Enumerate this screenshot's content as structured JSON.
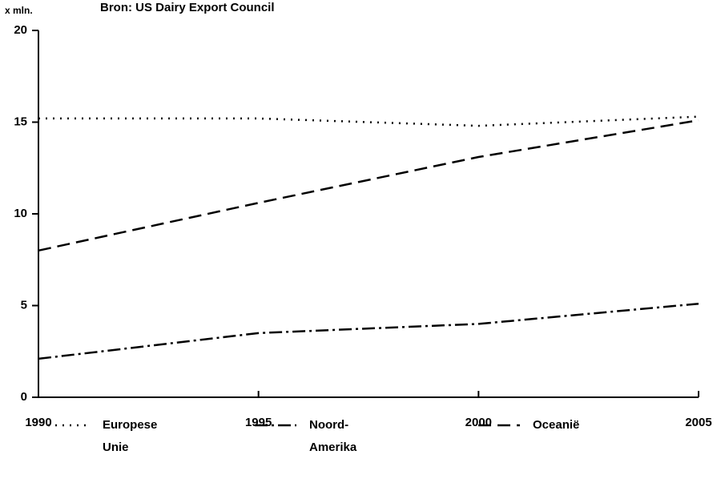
{
  "chart_data": {
    "type": "line",
    "title": "Bron: US Dairy Export Council",
    "y_label": "x mln.",
    "x": [
      1990,
      1995,
      2000,
      2005
    ],
    "xlim": [
      1990,
      2005
    ],
    "xticks": [
      1990,
      1995,
      2000,
      2005
    ],
    "ylim": [
      0,
      20
    ],
    "yticks": [
      0,
      5,
      10,
      15,
      20
    ],
    "grid": false,
    "legend": "bottom",
    "series": [
      {
        "name": "Europese Unie",
        "color": "#000000",
        "dash": "dotted",
        "values": [
          15.2,
          15.2,
          14.8,
          15.3
        ]
      },
      {
        "name": "Noord-Amerika",
        "color": "#000000",
        "dash": "dashdot",
        "values": [
          2.1,
          3.5,
          4.0,
          5.1
        ]
      },
      {
        "name": "Oceanië",
        "color": "#000000",
        "dash": "dashed",
        "values": [
          8.0,
          10.6,
          13.1,
          15.1
        ]
      }
    ]
  }
}
